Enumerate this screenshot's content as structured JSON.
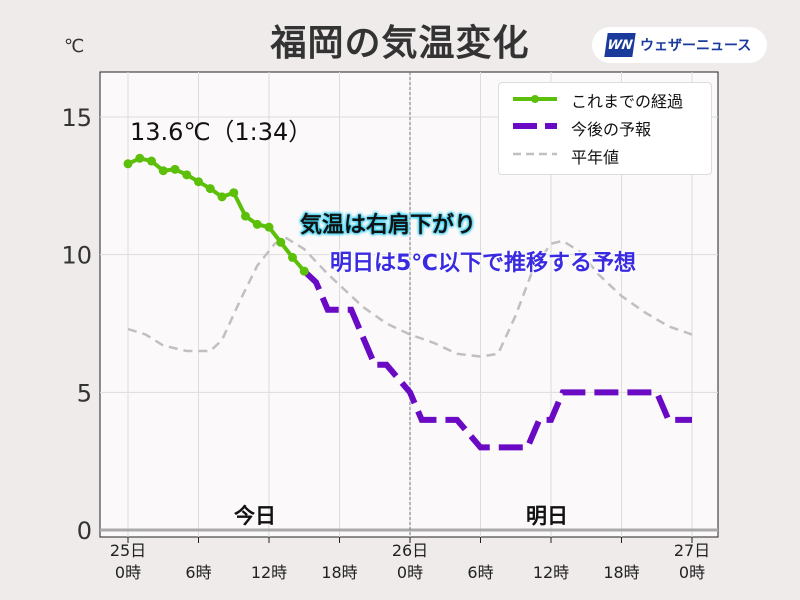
{
  "title": "福岡の気温変化",
  "logo": {
    "mark": "WN",
    "text": "ウェザーニュース"
  },
  "unit": "℃",
  "current": "13.6℃（1:34）",
  "annotations": [
    "気温は右肩下がり",
    "明日は5℃以下で推移する予想"
  ],
  "day_labels": [
    "今日",
    "明日"
  ],
  "colors": {
    "observed": "#5cbf0a",
    "forecast": "#6a0ac4",
    "normal": "#c0c0c0"
  },
  "chart_data": {
    "type": "line",
    "title": "福岡の気温変化",
    "ylabel": "℃",
    "ylim": [
      0,
      16.5
    ],
    "xlim": [
      -1.5,
      50
    ],
    "yticks": [
      0,
      5,
      10,
      15
    ],
    "xticks": [
      {
        "h": 0,
        "label": [
          "25日",
          "0時"
        ]
      },
      {
        "h": 6,
        "label": [
          "",
          "6時"
        ]
      },
      {
        "h": 12,
        "label": [
          "",
          "12時"
        ]
      },
      {
        "h": 18,
        "label": [
          "",
          "18時"
        ]
      },
      {
        "h": 24,
        "label": [
          "26日",
          "0時"
        ]
      },
      {
        "h": 30,
        "label": [
          "",
          "6時"
        ]
      },
      {
        "h": 36,
        "label": [
          "",
          "12時"
        ]
      },
      {
        "h": 42,
        "label": [
          "",
          "18時"
        ]
      },
      {
        "h": 48,
        "label": [
          "27日",
          "0時"
        ]
      }
    ],
    "grid": true,
    "legend_position": "top-right",
    "series": [
      {
        "name": "これまでの経過",
        "style": "solid-markers",
        "points": [
          [
            0,
            13.3
          ],
          [
            1,
            13.5
          ],
          [
            2,
            13.4
          ],
          [
            3,
            13.05
          ],
          [
            4,
            13.1
          ],
          [
            5,
            12.9
          ],
          [
            6,
            12.65
          ],
          [
            7,
            12.4
          ],
          [
            8,
            12.1
          ],
          [
            9,
            12.25
          ],
          [
            10,
            11.4
          ],
          [
            11,
            11.1
          ],
          [
            12,
            11.0
          ],
          [
            13,
            10.45
          ],
          [
            14,
            9.9
          ],
          [
            15,
            9.4
          ]
        ]
      },
      {
        "name": "今後の予報",
        "style": "dashed-thick",
        "points": [
          [
            15,
            9.4
          ],
          [
            16,
            9
          ],
          [
            17,
            8
          ],
          [
            19,
            8
          ],
          [
            20,
            7
          ],
          [
            21,
            6
          ],
          [
            22,
            6
          ],
          [
            24,
            5
          ],
          [
            25,
            4
          ],
          [
            28,
            4
          ],
          [
            30,
            3
          ],
          [
            34,
            3
          ],
          [
            35,
            4
          ],
          [
            36,
            4
          ],
          [
            37,
            5
          ],
          [
            45,
            5
          ],
          [
            46,
            4
          ],
          [
            48,
            4
          ]
        ]
      },
      {
        "name": "平年値",
        "style": "dashed",
        "points": [
          [
            0,
            7.3
          ],
          [
            1.5,
            7.1
          ],
          [
            3,
            6.7
          ],
          [
            5,
            6.5
          ],
          [
            7,
            6.5
          ],
          [
            8,
            6.9
          ],
          [
            9.5,
            8.3
          ],
          [
            11,
            9.6
          ],
          [
            12.5,
            10.4
          ],
          [
            13.5,
            10.6
          ],
          [
            15,
            10.2
          ],
          [
            17,
            9.3
          ],
          [
            20,
            8.1
          ],
          [
            22,
            7.5
          ],
          [
            24,
            7.1
          ],
          [
            26,
            6.8
          ],
          [
            28,
            6.4
          ],
          [
            30,
            6.3
          ],
          [
            31.5,
            6.4
          ],
          [
            33,
            7.8
          ],
          [
            34.5,
            9.5
          ],
          [
            36,
            10.4
          ],
          [
            37,
            10.5
          ],
          [
            38.5,
            10.1
          ],
          [
            40,
            9.3
          ],
          [
            42,
            8.5
          ],
          [
            44,
            7.9
          ],
          [
            46,
            7.4
          ],
          [
            48,
            7.1
          ]
        ]
      }
    ]
  }
}
